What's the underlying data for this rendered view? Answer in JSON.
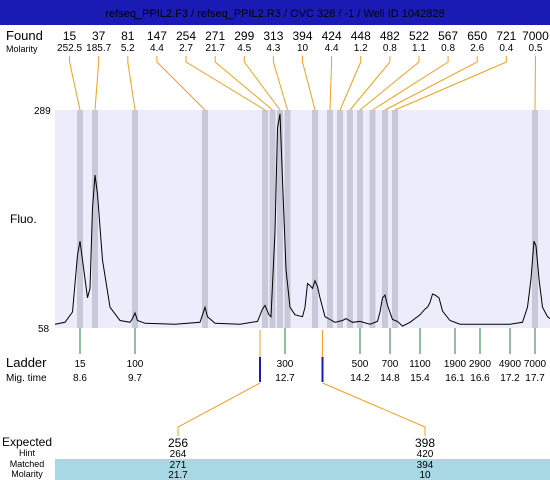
{
  "title": "refseq_PPIL2.F3 / refseq_PPIL2.R3 / OVC 328 / -1 / Well ID 1042828",
  "colors": {
    "title_bar": "#1a1ab4",
    "title_text": "#ffffff",
    "plot_bg": "#ececfa",
    "peak_band": "#c8c8d8",
    "found_line": "#f0a020",
    "ladder_line": "#208040",
    "expected_line": "#1a1ab4",
    "trace": "#000000",
    "row_highlight": "#a8d8e4"
  },
  "labels": {
    "found": "Found",
    "molarity": "Molarity",
    "fluo": "Fluo.",
    "ladder": "Ladder",
    "mig_time": "Mig. time",
    "expected": "Expected",
    "hint": "Hint",
    "matched": "Matched",
    "molarity_bottom": "Molarity"
  },
  "chart_data": {
    "type": "line",
    "ylim": [
      58,
      289
    ],
    "y_ticks": [
      "289",
      "58"
    ],
    "ylabel": "Fluo.",
    "x_unit": "mig_time",
    "xlim": [
      8.1,
      18.0
    ],
    "found_peaks": [
      {
        "size": "15",
        "molarity": "252.5",
        "time": 8.6
      },
      {
        "size": "37",
        "molarity": "185.7",
        "time": 8.9
      },
      {
        "size": "81",
        "molarity": "5.2",
        "time": 9.7
      },
      {
        "size": "147",
        "molarity": "4.4",
        "time": 11.1
      },
      {
        "size": "254",
        "molarity": "2.7",
        "time": 12.3
      },
      {
        "size": "271",
        "molarity": "21.7",
        "time": 12.45
      },
      {
        "size": "299",
        "molarity": "4.5",
        "time": 12.6
      },
      {
        "size": "313",
        "molarity": "4.3",
        "time": 12.75
      },
      {
        "size": "394",
        "molarity": "10",
        "time": 13.3
      },
      {
        "size": "424",
        "molarity": "4.4",
        "time": 13.6
      },
      {
        "size": "448",
        "molarity": "1.2",
        "time": 13.8
      },
      {
        "size": "482",
        "molarity": "0.8",
        "time": 14.0
      },
      {
        "size": "522",
        "molarity": "1.1",
        "time": 14.2
      },
      {
        "size": "567",
        "molarity": "0.8",
        "time": 14.45
      },
      {
        "size": "650",
        "molarity": "2.6",
        "time": 14.7
      },
      {
        "size": "721",
        "molarity": "0.4",
        "time": 14.9
      },
      {
        "size": "7000",
        "molarity": "0.5",
        "time": 17.7
      }
    ],
    "ladder": [
      {
        "size": "15",
        "time": "8.6"
      },
      {
        "size": "100",
        "time": "9.7"
      },
      {
        "size": "300",
        "time": "12.7"
      },
      {
        "size": "500",
        "time": "14.2"
      },
      {
        "size": "700",
        "time": "14.8"
      },
      {
        "size": "1100",
        "time": "15.4"
      },
      {
        "size": "1900",
        "time": "16.1"
      },
      {
        "size": "2900",
        "time": "16.6"
      },
      {
        "size": "4900",
        "time": "17.2"
      },
      {
        "size": "7000",
        "time": "17.7"
      }
    ],
    "expected": [
      {
        "size": "256",
        "hint": "264",
        "matched": "271",
        "molarity": "21.7",
        "time": 12.2
      },
      {
        "size": "398",
        "hint": "420",
        "matched": "394",
        "molarity": "10",
        "time": 13.45
      }
    ],
    "trace": [
      [
        8.1,
        62
      ],
      [
        8.3,
        64
      ],
      [
        8.45,
        75
      ],
      [
        8.55,
        135
      ],
      [
        8.6,
        150
      ],
      [
        8.65,
        130
      ],
      [
        8.75,
        90
      ],
      [
        8.8,
        100
      ],
      [
        8.85,
        185
      ],
      [
        8.9,
        220
      ],
      [
        8.95,
        200
      ],
      [
        9.05,
        130
      ],
      [
        9.2,
        80
      ],
      [
        9.4,
        66
      ],
      [
        9.6,
        64
      ],
      [
        9.65,
        68
      ],
      [
        9.7,
        74
      ],
      [
        9.75,
        66
      ],
      [
        9.9,
        63
      ],
      [
        10.5,
        62
      ],
      [
        11.0,
        64
      ],
      [
        11.05,
        72
      ],
      [
        11.1,
        80
      ],
      [
        11.15,
        70
      ],
      [
        11.3,
        63
      ],
      [
        11.8,
        62
      ],
      [
        12.15,
        65
      ],
      [
        12.25,
        78
      ],
      [
        12.3,
        82
      ],
      [
        12.38,
        72
      ],
      [
        12.42,
        70
      ],
      [
        12.5,
        160
      ],
      [
        12.55,
        270
      ],
      [
        12.6,
        285
      ],
      [
        12.65,
        215
      ],
      [
        12.72,
        120
      ],
      [
        12.8,
        80
      ],
      [
        12.9,
        72
      ],
      [
        13.05,
        70
      ],
      [
        13.1,
        80
      ],
      [
        13.15,
        105
      ],
      [
        13.2,
        103
      ],
      [
        13.25,
        100
      ],
      [
        13.3,
        108
      ],
      [
        13.35,
        102
      ],
      [
        13.4,
        90
      ],
      [
        13.5,
        70
      ],
      [
        13.6,
        67
      ],
      [
        13.7,
        64
      ],
      [
        13.85,
        66
      ],
      [
        13.92,
        68
      ],
      [
        14.05,
        64
      ],
      [
        14.2,
        65
      ],
      [
        14.4,
        62
      ],
      [
        14.55,
        65
      ],
      [
        14.6,
        75
      ],
      [
        14.65,
        90
      ],
      [
        14.7,
        93
      ],
      [
        14.75,
        82
      ],
      [
        14.85,
        67
      ],
      [
        14.95,
        65
      ],
      [
        15.05,
        60
      ],
      [
        15.2,
        64
      ],
      [
        15.4,
        72
      ],
      [
        15.5,
        78
      ],
      [
        15.55,
        80
      ],
      [
        15.6,
        85
      ],
      [
        15.65,
        94
      ],
      [
        15.7,
        93
      ],
      [
        15.78,
        90
      ],
      [
        15.85,
        76
      ],
      [
        16.0,
        66
      ],
      [
        16.2,
        62
      ],
      [
        16.6,
        62
      ],
      [
        17.2,
        62
      ],
      [
        17.45,
        64
      ],
      [
        17.55,
        80
      ],
      [
        17.62,
        110
      ],
      [
        17.68,
        150
      ],
      [
        17.72,
        145
      ],
      [
        17.78,
        110
      ],
      [
        17.85,
        80
      ],
      [
        17.95,
        70
      ],
      [
        18.0,
        68
      ]
    ]
  }
}
